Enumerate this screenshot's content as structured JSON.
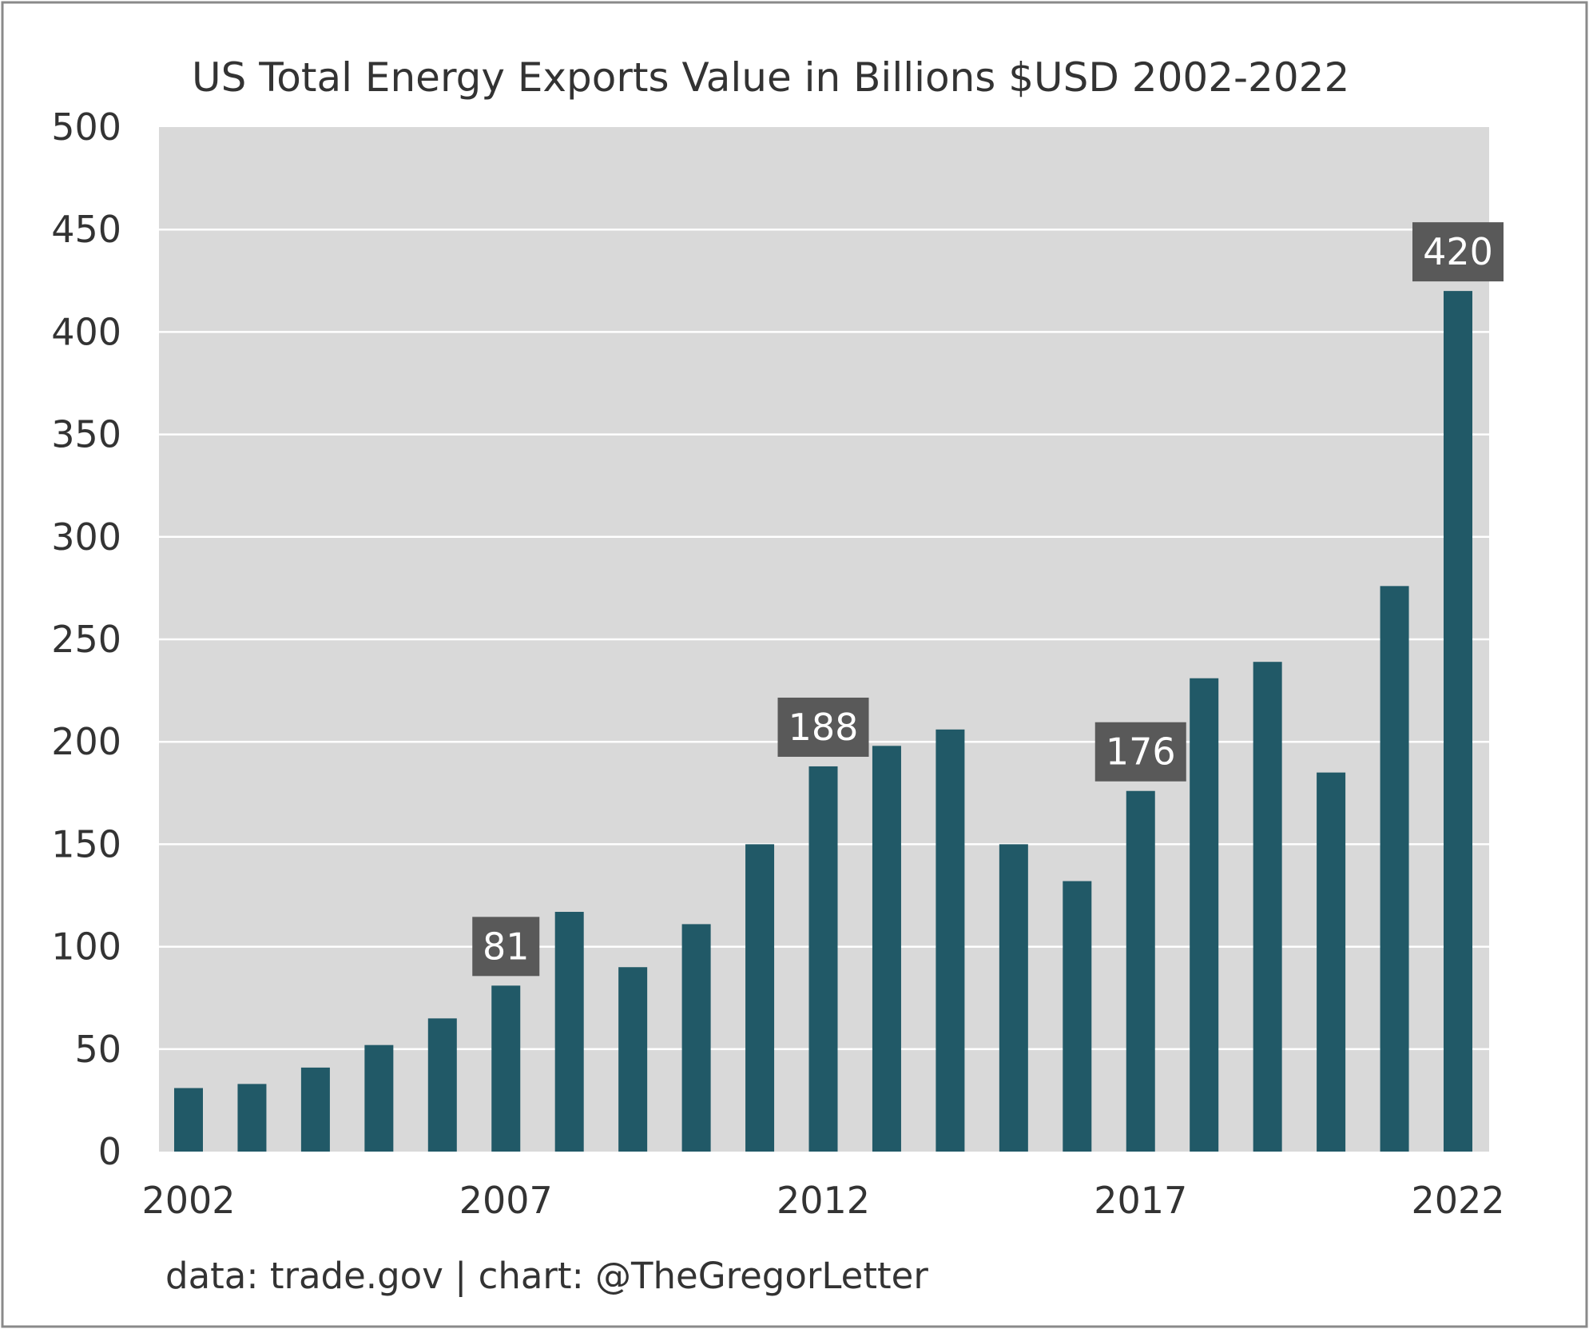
{
  "chart_data": {
    "type": "bar",
    "title": "US Total Energy Exports Value in Billions $USD 2002-2022",
    "xlabel": "",
    "ylabel": "",
    "ylim": [
      0,
      500
    ],
    "yticks": [
      0,
      50,
      100,
      150,
      200,
      250,
      300,
      350,
      400,
      450,
      500
    ],
    "xtick_labels": [
      "2002",
      "2007",
      "2012",
      "2017",
      "2022"
    ],
    "categories": [
      "2002",
      "2003",
      "2004",
      "2005",
      "2006",
      "2007",
      "2008",
      "2009",
      "2010",
      "2011",
      "2012",
      "2013",
      "2014",
      "2015",
      "2016",
      "2017",
      "2018",
      "2019",
      "2020",
      "2021",
      "2022"
    ],
    "values": [
      31,
      33,
      41,
      52,
      65,
      81,
      117,
      90,
      111,
      150,
      188,
      198,
      206,
      150,
      132,
      176,
      231,
      239,
      185,
      276,
      420
    ],
    "data_labels": [
      {
        "category": "2007",
        "text": "81"
      },
      {
        "category": "2012",
        "text": "188"
      },
      {
        "category": "2017",
        "text": "176"
      },
      {
        "category": "2022",
        "text": "420"
      }
    ],
    "grid": true,
    "bar_color": "#215967",
    "background_color": "#d9d9d9",
    "source_note": "data: trade.gov | chart: @TheGregorLetter"
  }
}
